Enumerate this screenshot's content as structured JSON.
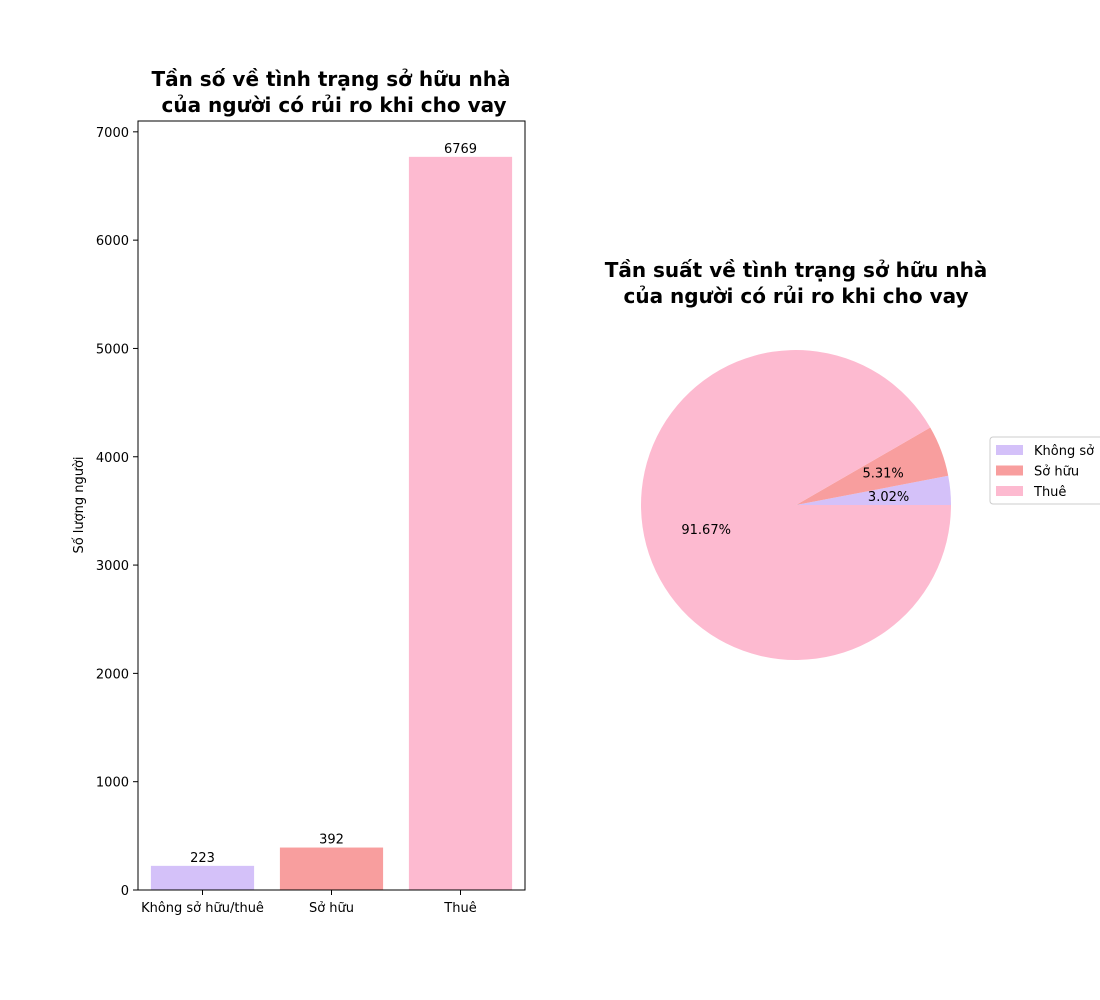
{
  "colors": {
    "lavender": "#d4c1f9",
    "salmon": "#f89e9e",
    "pink": "#fdbad0",
    "axis": "#000000",
    "legend_border": "#cccccc"
  },
  "chart_data": [
    {
      "type": "bar",
      "title_lines": [
        "Tần số về tình trạng sở hữu nhà",
        "của người có rủi ro khi cho vay"
      ],
      "xlabel": "",
      "ylabel": "Số lượng người",
      "categories": [
        "Không sở hữu/thuê",
        "Sở hữu",
        "Thuê"
      ],
      "values": [
        223,
        392,
        6769
      ],
      "data_labels": [
        "223",
        "392",
        "6769"
      ],
      "bar_colors": [
        "#d4c1f9",
        "#f89e9e",
        "#fdbad0"
      ],
      "ylim": [
        0,
        7100
      ],
      "yticks": [
        0,
        1000,
        2000,
        3000,
        4000,
        5000,
        6000,
        7000
      ],
      "ytick_labels": [
        "0",
        "1000",
        "2000",
        "3000",
        "4000",
        "5000",
        "6000",
        "7000"
      ],
      "grid": false
    },
    {
      "type": "pie",
      "title_lines": [
        "Tần suất về tình trạng sở hữu nhà",
        "của người có rủi ro khi cho vay"
      ],
      "labels": [
        "Không sở hữu/thuê",
        "Sở hữu",
        "Thuê"
      ],
      "legend_labels": [
        "Không sở",
        "Sở hữu",
        "Thuê"
      ],
      "values": [
        3.02,
        5.31,
        91.67
      ],
      "pct_labels": [
        "3.02%",
        "5.31%",
        "91.67%"
      ],
      "colors": [
        "#d4c1f9",
        "#f89e9e",
        "#fdbad0"
      ],
      "start_angle_deg": 0,
      "direction": "counterclockwise",
      "legend_position": "right"
    }
  ]
}
